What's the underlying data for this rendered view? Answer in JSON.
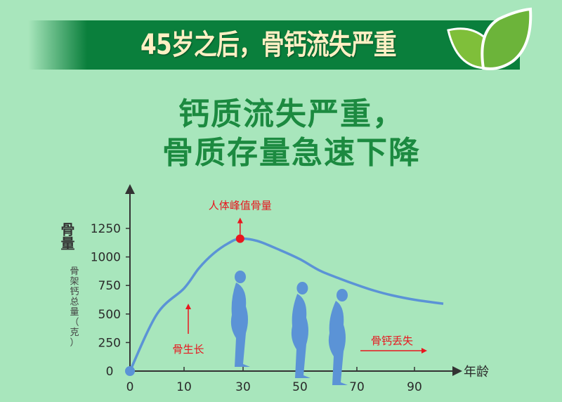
{
  "banner": {
    "title": "45岁之后，骨钙流失严重",
    "icon": "leaf-icon"
  },
  "headline": {
    "line1": "钙质流失严重，",
    "line2": "骨质存量急速下降"
  },
  "colors": {
    "background": "#a8e6bc",
    "banner": "#0a7f3c",
    "headline": "#1c8a40",
    "curve": "#5b93d6",
    "annotation": "#e8161e",
    "silhouette": "#5b93d6"
  },
  "chart_data": {
    "type": "line",
    "ylabel": "骨量",
    "ylabel_sub": [
      "骨",
      "架",
      "钙",
      "总",
      "量",
      "（",
      "克",
      "）"
    ],
    "xlabel": "年龄",
    "x_ticks": [
      0,
      10,
      30,
      50,
      70,
      90
    ],
    "y_ticks": [
      0,
      250,
      500,
      750,
      1000,
      1250
    ],
    "ylim": [
      0,
      1450
    ],
    "grid": false,
    "series": [
      {
        "x": [
          0,
          5,
          10,
          15,
          20,
          25,
          29,
          35,
          43,
          50,
          57,
          64,
          70,
          76,
          82,
          90,
          100
        ],
        "y": [
          0,
          500,
          725,
          900,
          1030,
          1120,
          1160,
          1140,
          1060,
          980,
          880,
          810,
          755,
          705,
          665,
          625,
          590
        ]
      }
    ],
    "peak": {
      "x": 29,
      "y": 1160,
      "label": "人体峰值骨量"
    },
    "annotations": {
      "growth": "骨生长",
      "loss": "骨钙丢失"
    }
  }
}
